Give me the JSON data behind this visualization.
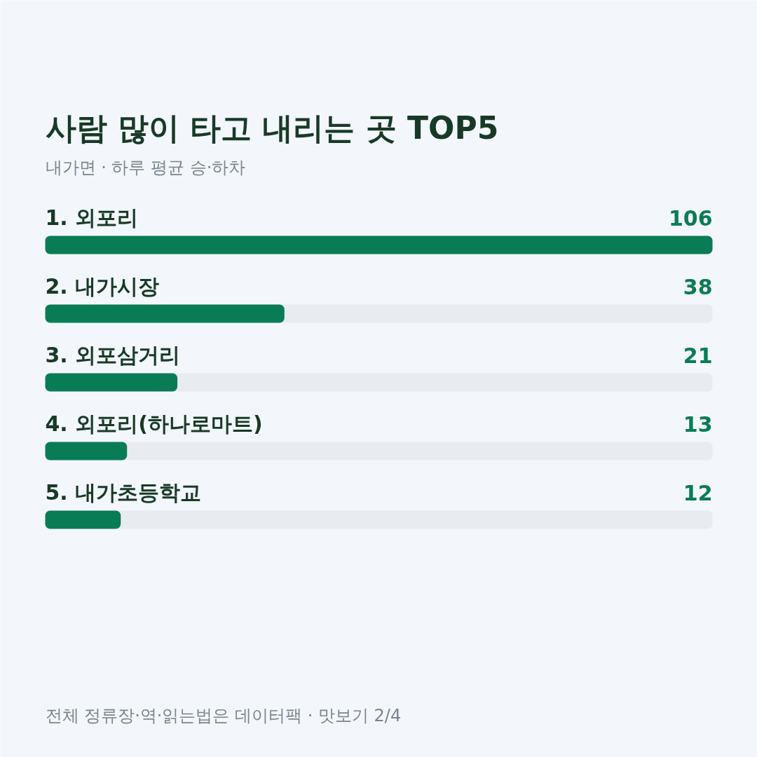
{
  "chart_data": {
    "type": "bar",
    "orientation": "horizontal",
    "title": "사람 많이 타고 내리는 곳 TOP5",
    "subtitle": "내가면 · 하루 평균 승·하차",
    "categories": [
      "1. 외포리",
      "2. 내가시장",
      "3. 외포삼거리",
      "4. 외포리(하나로마트)",
      "5. 내가초등학교"
    ],
    "values": [
      106,
      38,
      21,
      13,
      12
    ],
    "color": "#0a7c55",
    "data_labels": true,
    "annotations": [
      "전체 정류장·역·읽는법은 데이터팩 · 맛보기 2/4"
    ]
  }
}
